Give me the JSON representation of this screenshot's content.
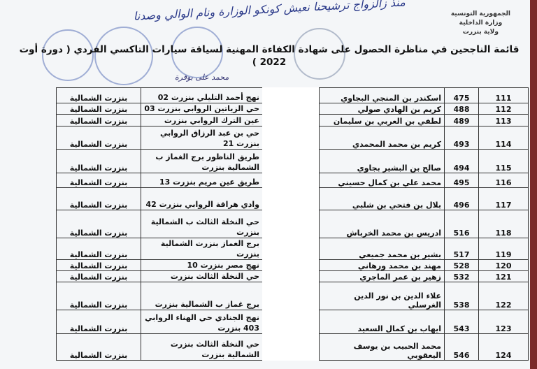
{
  "header": {
    "org_lines": [
      "الجمهورية التونسية",
      "وزارة الداخلية",
      "ولاية بنزرت"
    ],
    "title": "قائمة الناجحين في مناظرة الحصول على شهادة الكفاءة المهنية لسياقة سيارات التاكسي الفردي ( دورة أوت 2022 )",
    "handwriting": [
      "منذ زالزواج ترشيحنا نعيش كونكو الوزارة ونام الوالي وصدنا",
      "محمد على بوقرة"
    ]
  },
  "table": {
    "rows": [
      {
        "index": "111",
        "number": "475",
        "name": "اسكندر بن المنجي البجاوي",
        "address": "نهج أحمد التليلي بنزرت 02",
        "region": "بنزرت الشمالية"
      },
      {
        "index": "112",
        "number": "488",
        "name": "كريم بن الهادي صولي",
        "address": "حي الزياتين الروابي بنزرت 03",
        "region": "بنزرت الشمالية"
      },
      {
        "index": "113",
        "number": "489",
        "name": "لطفي بن العربي بن سليمان",
        "address": "عين الترك الروابي بنزرت",
        "region": "بنزرت الشمالية"
      },
      {
        "index": "114",
        "number": "493",
        "name": "كريم بن محمد المحمدي",
        "address": "حي بن عبد الرزاق الروابي بنزرت 21",
        "region": "بنزرت الشمالية"
      },
      {
        "index": "115",
        "number": "494",
        "name": "صالح بن البشير بجاوي",
        "address": "طريق الناظور برج الغماز ب الشمالية بنزرت",
        "region": "بنزرت الشمالية"
      },
      {
        "index": "116",
        "number": "495",
        "name": "محمد علي بن كمال حسيني",
        "address": "طريق عين مريم بنزرت 13",
        "region": "بنزرت الشمالية"
      },
      {
        "index": "117",
        "number": "496",
        "name": "بلال بن فتحي بن شلبي",
        "address": "وادي هراقة الروابي بنزرت 42",
        "region": "بنزرت الشمالية"
      },
      {
        "index": "118",
        "number": "516",
        "name": "ادريس بن محمد الخرباش",
        "address": "حي النخلة الثالث ب الشمالية بنزرت",
        "region": "بنزرت الشمالية"
      },
      {
        "index": "119",
        "number": "517",
        "name": "بشير بن محمد جميعي",
        "address": "برج الغماز بنزرت الشمالية بنزرت",
        "region": "بنزرت الشمالية"
      },
      {
        "index": "120",
        "number": "528",
        "name": "مهند بن محمد ورهاني",
        "address": "نهج مصر بنزرت 10",
        "region": "بنزرت الشمالية"
      },
      {
        "index": "121",
        "number": "532",
        "name": "زهير بن عمر الماجري",
        "address": "حي النخلة الثالث بنزرت",
        "region": "بنزرت الشمالية"
      },
      {
        "index": "122",
        "number": "538",
        "name": "علاء الدين بن نور الدين الغرسلي",
        "address": "برج غماز ب الشمالية بنزرت",
        "region": "بنزرت الشمالية"
      },
      {
        "index": "123",
        "number": "543",
        "name": "ايهاب بن كمال السعيد",
        "address": "نهج الجنادي حي الهناء الروابي 403 بنزرت",
        "region": "بنزرت الشمالية"
      },
      {
        "index": "124",
        "number": "546",
        "name": "محمد الحبيب بن يوسف اليعقوبي",
        "address": "حي النخلة الثالث بنزرت الشمالية بنزرت",
        "region": "بنزرت الشمالية"
      }
    ]
  }
}
